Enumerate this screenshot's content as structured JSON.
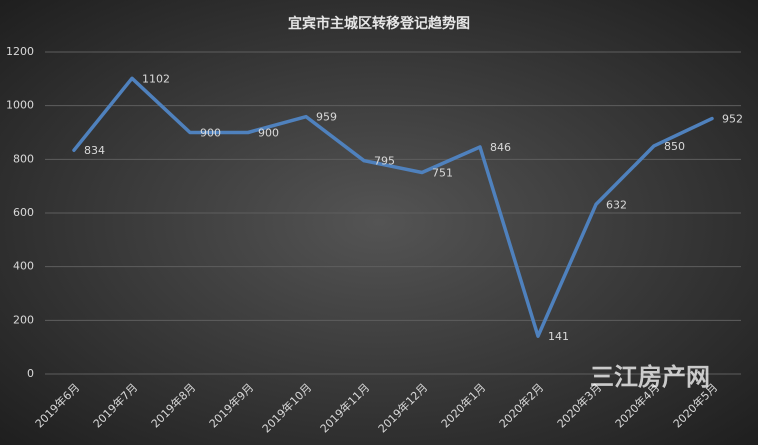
{
  "chart_data": {
    "type": "line",
    "title": "宜宾市主城区转移登记趋势图",
    "categories": [
      "2019年6月",
      "2019年7月",
      "2019年8月",
      "2019年9月",
      "2019年10月",
      "2019年11月",
      "2019年12月",
      "2020年1月",
      "2020年2月",
      "2020年3月",
      "2020年4月",
      "2020年5月"
    ],
    "values": [
      834,
      1102,
      900,
      900,
      959,
      795,
      751,
      846,
      141,
      632,
      850,
      952
    ],
    "color": "#4f81bd",
    "ylim": [
      0,
      1200
    ],
    "yticks": [
      0,
      200,
      400,
      600,
      800,
      1000,
      1200
    ],
    "grid": true,
    "watermark": "三江房产网"
  }
}
